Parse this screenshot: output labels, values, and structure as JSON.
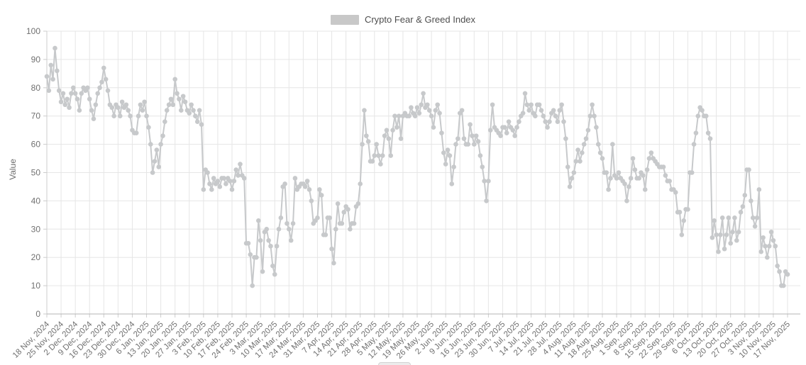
{
  "page": {
    "background": "#ffffff"
  },
  "legend": {
    "label": "Crypto Fear & Greed Index",
    "swatch_color": "#c8c8c8"
  },
  "chart_data": {
    "type": "line",
    "title": "Crypto Fear & Greed Index",
    "series_name": "Crypto Fear & Greed Index",
    "xlabel": "",
    "ylabel": "Value",
    "ylim": [
      0,
      100
    ],
    "yticks": [
      0,
      10,
      20,
      30,
      40,
      50,
      60,
      70,
      80,
      90,
      100
    ],
    "grid": true,
    "legend_position": "top-center",
    "marker": "circle",
    "line_color": "#c7c9cb",
    "marker_color": "#c7c9cb",
    "grid_color": "#e6e6e6",
    "axis_color": "#b5b5b5",
    "tick_text_color": "#707070",
    "x_start_date": "18 Nov, 2024",
    "x_end_date": "17 Nov, 2025",
    "x_tick_interval_days": 7,
    "xtick_labels": [
      "18 Nov, 2024",
      "25 Nov, 2024",
      "2 Dec, 2024",
      "9 Dec, 2024",
      "16 Dec, 2024",
      "23 Dec, 2024",
      "30 Dec, 2024",
      "6 Jan, 2025",
      "13 Jan, 2025",
      "20 Jan, 2025",
      "27 Jan, 2025",
      "3 Feb, 2025",
      "10 Feb, 2025",
      "17 Feb, 2025",
      "24 Feb, 2025",
      "3 Mar, 2025",
      "10 Mar, 2025",
      "17 Mar, 2025",
      "24 Mar, 2025",
      "31 Mar, 2025",
      "7 Apr, 2025",
      "14 Apr, 2025",
      "21 Apr, 2025",
      "28 Apr, 2025",
      "5 May, 2025",
      "12 May, 2025",
      "19 May, 2025",
      "26 May, 2025",
      "2 Jun, 2025",
      "9 Jun, 2025",
      "16 Jun, 2025",
      "23 Jun, 2025",
      "30 Jun, 2025",
      "7 Jul, 2025",
      "14 Jul, 2025",
      "21 Jul, 2025",
      "28 Jul, 2025",
      "4 Aug, 2025",
      "11 Aug, 2025",
      "18 Aug, 2025",
      "25 Aug, 2025",
      "1 Sep, 2025",
      "8 Sep, 2025",
      "15 Sep, 2025",
      "22 Sep, 2025",
      "29 Sep, 2025",
      "6 Oct, 2025",
      "13 Oct, 2025",
      "20 Oct, 2025",
      "27 Oct, 2025",
      "3 Nov, 2025",
      "10 Nov, 2025",
      "17 Nov, 2025"
    ],
    "values": [
      84,
      79,
      88,
      83,
      94,
      86,
      79,
      75,
      78,
      74,
      76,
      73,
      78,
      80,
      78,
      76,
      72,
      78,
      80,
      79,
      80,
      76,
      72,
      69,
      74,
      78,
      80,
      82,
      87,
      83,
      79,
      74,
      73,
      70,
      74,
      73,
      70,
      75,
      73,
      74,
      72,
      70,
      65,
      64,
      64,
      70,
      74,
      72,
      75,
      70,
      66,
      60,
      50,
      54,
      58,
      52,
      60,
      63,
      68,
      72,
      74,
      76,
      74,
      83,
      78,
      76,
      72,
      77,
      75,
      72,
      71,
      74,
      72,
      70,
      68,
      72,
      67,
      44,
      51,
      50,
      46,
      44,
      48,
      46,
      47,
      45,
      48,
      48,
      46,
      48,
      47,
      44,
      47,
      51,
      49,
      53,
      49,
      48,
      25,
      25,
      21,
      10,
      20,
      20,
      33,
      26,
      15,
      29,
      30,
      26,
      24,
      17,
      14,
      24,
      30,
      34,
      45,
      46,
      32,
      30,
      26,
      32,
      48,
      44,
      45,
      46,
      46,
      45,
      47,
      44,
      40,
      32,
      33,
      34,
      44,
      42,
      28,
      28,
      34,
      34,
      23,
      18,
      30,
      39,
      32,
      32,
      36,
      38,
      37,
      30,
      32,
      32,
      38,
      39,
      46,
      60,
      72,
      63,
      61,
      54,
      54,
      56,
      60,
      56,
      53,
      56,
      63,
      65,
      62,
      56,
      65,
      70,
      66,
      70,
      62,
      70,
      71,
      70,
      70,
      73,
      71,
      70,
      73,
      71,
      74,
      78,
      73,
      74,
      72,
      70,
      66,
      72,
      74,
      71,
      64,
      57,
      53,
      58,
      56,
      46,
      52,
      60,
      62,
      71,
      72,
      62,
      60,
      60,
      67,
      63,
      60,
      63,
      61,
      56,
      52,
      47,
      40,
      47,
      65,
      74,
      66,
      65,
      64,
      63,
      66,
      66,
      64,
      68,
      66,
      65,
      63,
      66,
      68,
      70,
      71,
      78,
      74,
      72,
      74,
      71,
      70,
      74,
      74,
      72,
      70,
      68,
      66,
      68,
      71,
      72,
      70,
      68,
      72,
      74,
      68,
      62,
      52,
      45,
      48,
      50,
      54,
      58,
      54,
      57,
      60,
      62,
      65,
      70,
      74,
      70,
      66,
      60,
      57,
      55,
      50,
      50,
      44,
      48,
      60,
      49,
      48,
      50,
      48,
      47,
      46,
      40,
      45,
      48,
      55,
      51,
      48,
      48,
      50,
      49,
      44,
      51,
      55,
      57,
      55,
      54,
      53,
      52,
      52,
      52,
      49,
      47,
      47,
      44,
      44,
      43,
      36,
      36,
      28,
      33,
      37,
      37,
      50,
      50,
      60,
      64,
      70,
      73,
      72,
      70,
      70,
      64,
      62,
      27,
      33,
      28,
      22,
      28,
      34,
      23,
      28,
      34,
      25,
      29,
      34,
      26,
      29,
      36,
      38,
      42,
      51,
      51,
      40,
      34,
      31,
      34,
      44,
      22,
      27,
      24,
      20,
      24,
      29,
      26,
      24,
      17,
      15,
      10,
      10,
      15,
      14
    ]
  }
}
